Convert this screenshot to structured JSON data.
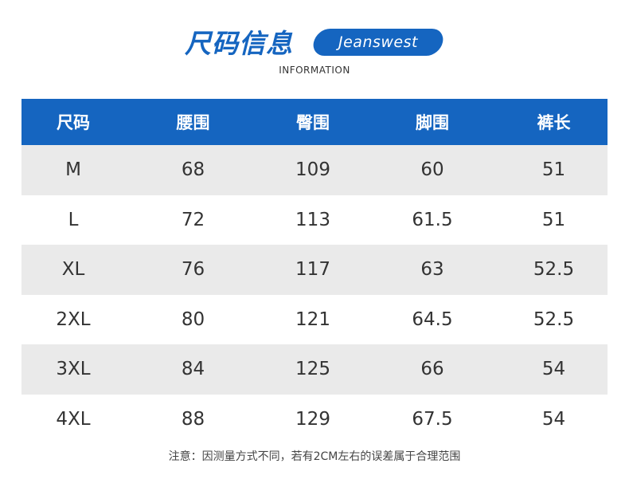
{
  "header": {
    "title": "尺码信息",
    "brand": "Jeanswest",
    "subtitle": "INFORMATION"
  },
  "colors": {
    "accent": "#1565c0",
    "row_shade": "#eaeaea"
  },
  "table": {
    "columns": [
      "尺码",
      "腰围",
      "臀围",
      "脚围",
      "裤长"
    ],
    "rows": [
      [
        "M",
        "68",
        "109",
        "60",
        "51"
      ],
      [
        "L",
        "72",
        "113",
        "61.5",
        "51"
      ],
      [
        "XL",
        "76",
        "117",
        "63",
        "52.5"
      ],
      [
        "2XL",
        "80",
        "121",
        "64.5",
        "52.5"
      ],
      [
        "3XL",
        "84",
        "125",
        "66",
        "54"
      ],
      [
        "4XL",
        "88",
        "129",
        "67.5",
        "54"
      ]
    ]
  },
  "note": "注意：因测量方式不同，若有2CM左右的误差属于合理范围"
}
